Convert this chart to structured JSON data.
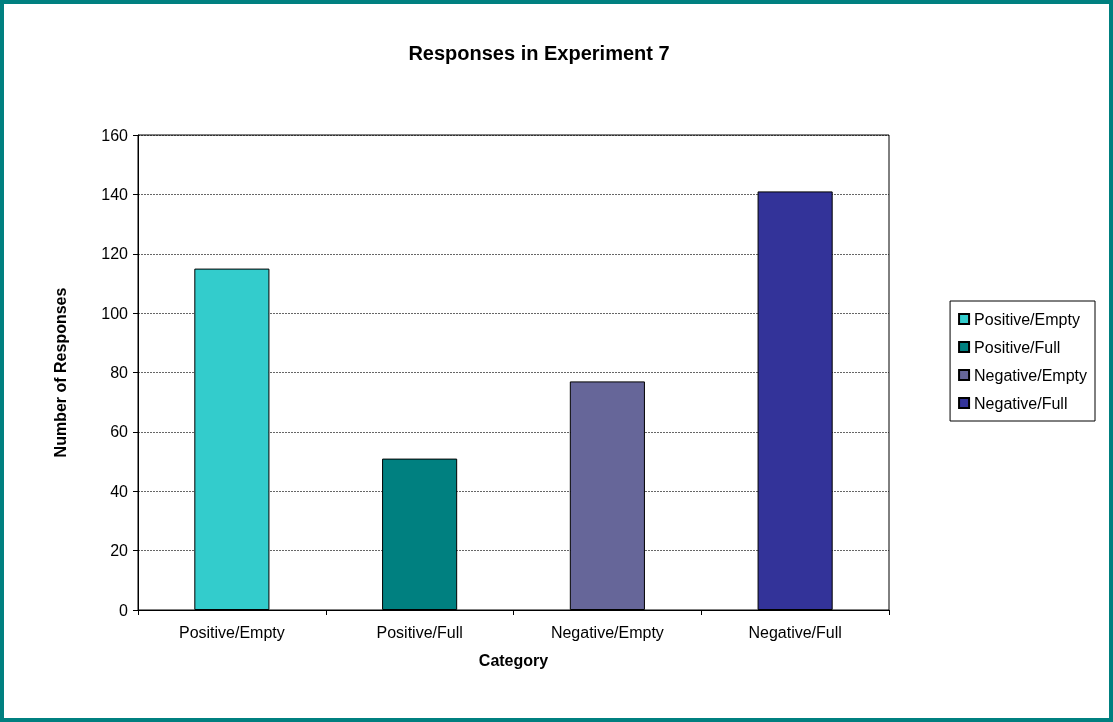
{
  "chart_data": {
    "type": "bar",
    "title": "Responses in Experiment 7",
    "xlabel": "Category",
    "ylabel": "Number of Responses",
    "categories": [
      "Positive/Empty",
      "Positive/Full",
      "Negative/Empty",
      "Negative/Full"
    ],
    "series": [
      {
        "name": "Positive/Empty",
        "color": "#33cccc",
        "values": [
          115,
          null,
          null,
          null
        ]
      },
      {
        "name": "Positive/Full",
        "color": "#008080",
        "values": [
          null,
          51,
          null,
          null
        ]
      },
      {
        "name": "Negative/Empty",
        "color": "#666699",
        "values": [
          null,
          null,
          77,
          null
        ]
      },
      {
        "name": "Negative/Full",
        "color": "#333399",
        "values": [
          null,
          null,
          null,
          141
        ]
      }
    ],
    "stacked": true,
    "ylim": [
      0,
      160
    ],
    "yticks": [
      0,
      20,
      40,
      60,
      80,
      100,
      120,
      140,
      160
    ],
    "grid": "y",
    "legend": "right"
  }
}
